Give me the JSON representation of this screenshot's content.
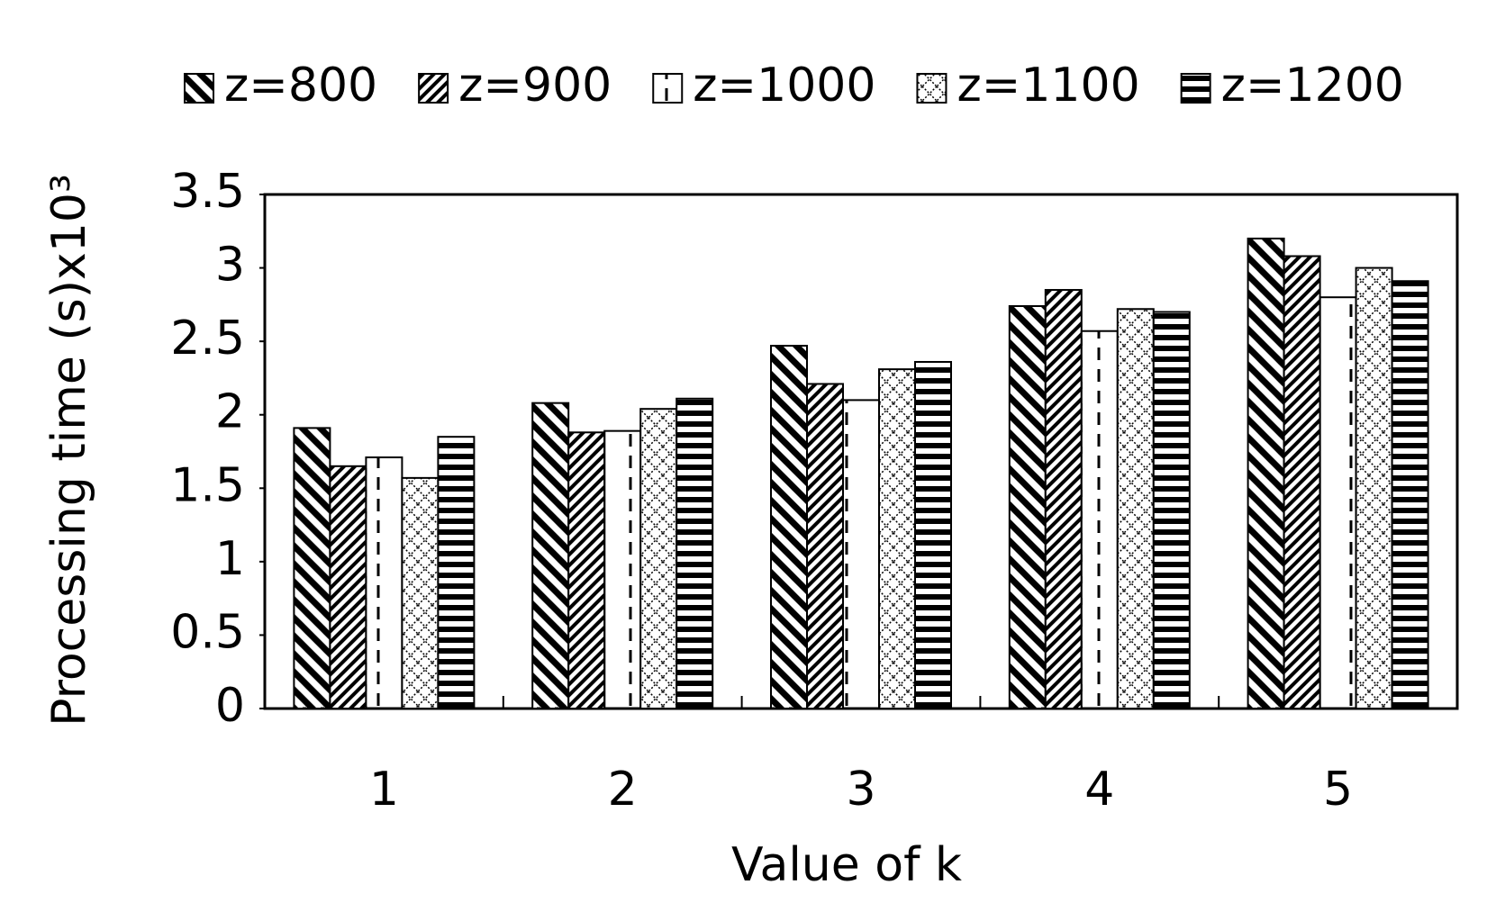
{
  "chart_data": {
    "type": "bar",
    "x_label": "Value of k",
    "y_label": "Processing time (s)x10³",
    "categories": [
      "1",
      "2",
      "3",
      "4",
      "5"
    ],
    "series": [
      {
        "name": "z=800",
        "color": "#000000",
        "pattern": "diagonal-down",
        "values": [
          1.91,
          2.08,
          2.47,
          2.74,
          3.2
        ]
      },
      {
        "name": "z=900",
        "color": "#000000",
        "pattern": "diagonal-up",
        "values": [
          1.65,
          1.88,
          2.21,
          2.85,
          3.08
        ]
      },
      {
        "name": "z=1000",
        "color": "#000000",
        "pattern": "dashed-vertical",
        "values": [
          1.71,
          1.89,
          2.1,
          2.57,
          2.8
        ]
      },
      {
        "name": "z=1100",
        "color": "#000000",
        "pattern": "dotted-grid",
        "values": [
          1.57,
          2.04,
          2.31,
          2.72,
          3.0
        ]
      },
      {
        "name": "z=1200",
        "color": "#000000",
        "pattern": "horizontal",
        "values": [
          1.85,
          2.11,
          2.36,
          2.7,
          2.91
        ]
      }
    ],
    "ylim": [
      0,
      3.5
    ],
    "yticks": [
      0,
      0.5,
      1,
      1.5,
      2,
      2.5,
      3,
      3.5
    ],
    "grid": false,
    "legend": "top"
  }
}
